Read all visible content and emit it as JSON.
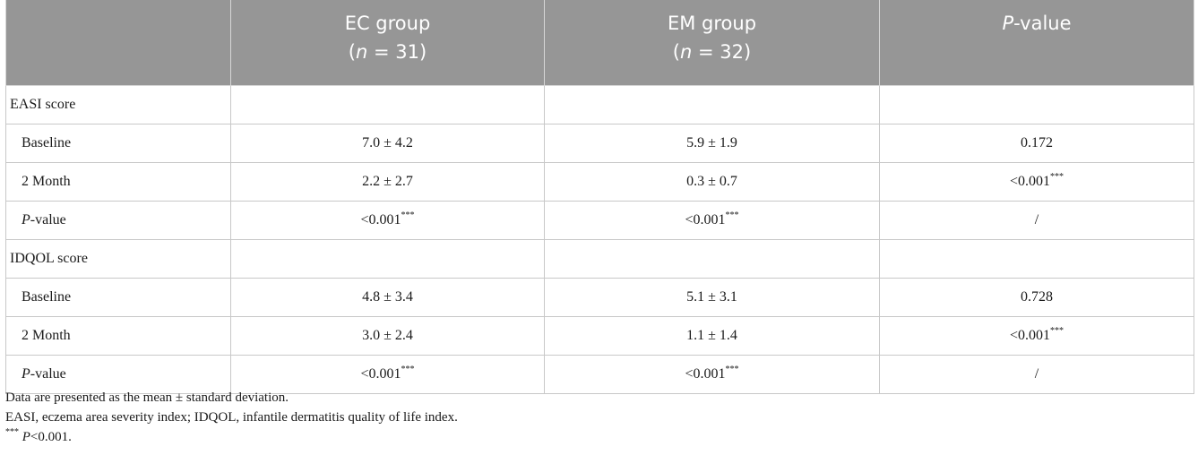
{
  "header": {
    "col1": "",
    "ec_line1": "EC group",
    "ec_n": "n",
    "ec_rest": " = 31)",
    "em_line1": "EM group",
    "em_n": "n",
    "em_rest": " = 32)",
    "p_italic": "P",
    "p_rest": "-value"
  },
  "rows": [
    {
      "label": "EASI score",
      "ec": "",
      "em": "",
      "p": "",
      "p_sup": "",
      "ec_sup": "",
      "em_sup": ""
    },
    {
      "label": "Baseline",
      "ec": "7.0 ± 4.2",
      "em": "5.9 ± 1.9",
      "p": "0.172",
      "p_sup": "",
      "ec_sup": "",
      "em_sup": ""
    },
    {
      "label": "2 Month",
      "ec": "2.2 ± 2.7",
      "em": "0.3 ± 0.7",
      "p": "<0.001",
      "p_sup": "***",
      "ec_sup": "",
      "em_sup": ""
    },
    {
      "label_italic": "P",
      "label": "-value",
      "ec": "<0.001",
      "ec_sup": "***",
      "em": "<0.001",
      "em_sup": "***",
      "p": "/",
      "p_sup": ""
    },
    {
      "label": "IDQOL score",
      "ec": "",
      "em": "",
      "p": "",
      "p_sup": "",
      "ec_sup": "",
      "em_sup": ""
    },
    {
      "label": "Baseline",
      "ec": "4.8 ± 3.4",
      "em": "5.1 ± 3.1",
      "p": "0.728",
      "p_sup": "",
      "ec_sup": "",
      "em_sup": ""
    },
    {
      "label": "2 Month",
      "ec": "3.0 ± 2.4",
      "em": "1.1 ± 1.4",
      "p": "<0.001",
      "p_sup": "***",
      "ec_sup": "",
      "em_sup": ""
    },
    {
      "label_italic": "P",
      "label": "-value",
      "ec": "<0.001",
      "ec_sup": "***",
      "em": "<0.001",
      "em_sup": "***",
      "p": "/",
      "p_sup": ""
    }
  ],
  "notes": {
    "line1": "Data are presented as the mean ± standard deviation.",
    "line2": "EASI, eczema area severity index; IDQOL, infantile dermatitis quality of life index.",
    "line3_sup": "***",
    "line3_italic": "P",
    "line3_rest": "<0.001."
  }
}
